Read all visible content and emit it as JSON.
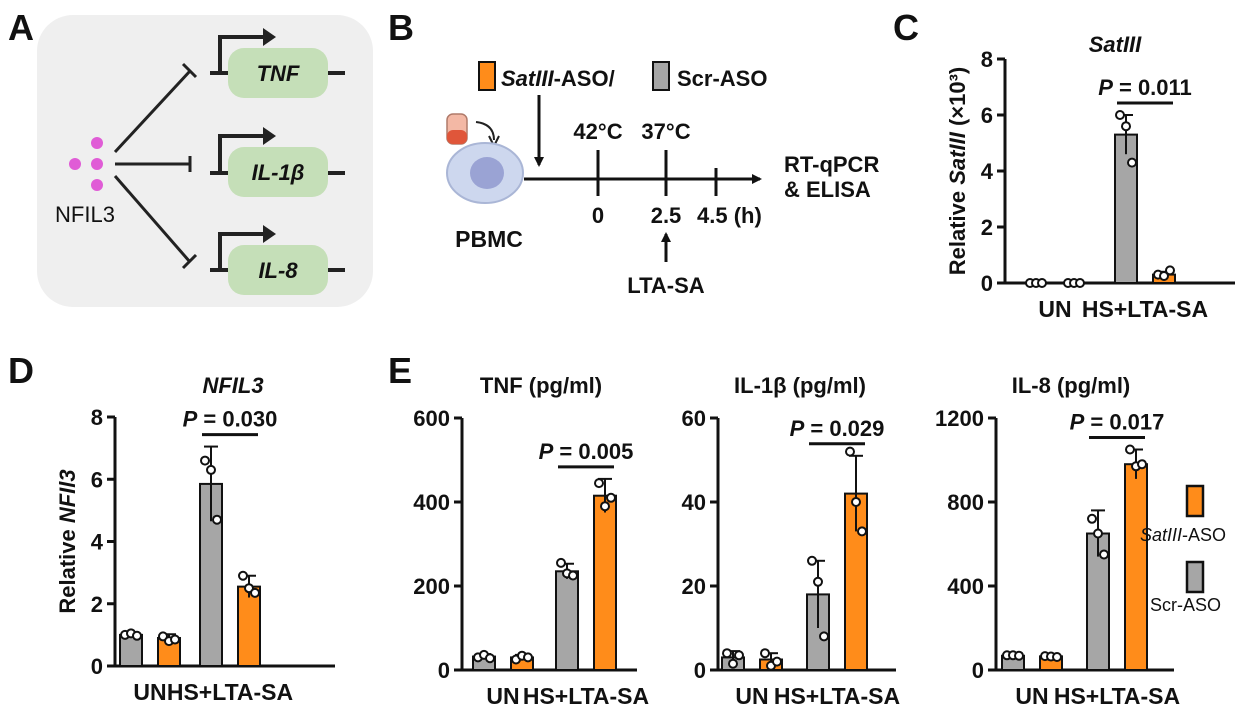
{
  "colors": {
    "gray": "#a6a6a6",
    "orange": "#ff8c1a",
    "green": "#c5dfb8",
    "pink": "#e05cd6",
    "panel_bg": "#efefef"
  },
  "panel_letters": [
    "A",
    "B",
    "C",
    "D",
    "E"
  ],
  "panelA": {
    "regulator": "NFIL3",
    "genes": [
      "TNF",
      "IL-1β",
      "IL-8"
    ]
  },
  "panelB": {
    "treatment_a": "SatIII",
    "treatment_a_suffix": "-ASO/",
    "treatment_b": "Scr-ASO",
    "cells": "PBMC",
    "temp1": "42°C",
    "temp2": "37°C",
    "times": [
      "0",
      "2.5",
      "4.5 (h)"
    ],
    "stimulus": "LTA-SA",
    "readout_line1": "RT-qPCR",
    "readout_line2": "& ELISA"
  },
  "legend": {
    "orange_label_italic": "SatIII",
    "orange_label_suffix": "-ASO",
    "gray_label": "Scr-ASO"
  },
  "chart_data": [
    {
      "id": "C",
      "type": "bar",
      "title": "SatIII",
      "title_italic": true,
      "ylabel_prefix": "Relative ",
      "ylabel_italic": "SatIII",
      "ylabel_suffix": " (×10³)",
      "ylim": [
        0,
        8
      ],
      "yticks": [
        "0",
        "2",
        "4",
        "6",
        "8"
      ],
      "groups": [
        "UN",
        "HS+LTA-SA"
      ],
      "pvalue": "P = 0.011",
      "series": [
        {
          "color": "gray",
          "values": [
            0.0,
            5.3
          ],
          "err": [
            0.0,
            0.7
          ],
          "points": [
            [
              0.0,
              0.0,
              0.0
            ],
            [
              6.0,
              5.6,
              4.3
            ]
          ]
        },
        {
          "color": "orange",
          "values": [
            0.0,
            0.3
          ],
          "err": [
            0.0,
            0.1
          ],
          "points": [
            [
              0.0,
              0.0,
              0.0
            ],
            [
              0.3,
              0.25,
              0.45
            ]
          ]
        }
      ]
    },
    {
      "id": "D",
      "type": "bar",
      "title": "NFIL3",
      "title_italic": true,
      "ylabel_prefix": "Relative ",
      "ylabel_italic": "NFIl3",
      "ylabel_suffix": "",
      "ylim": [
        0,
        8
      ],
      "yticks": [
        "0",
        "2",
        "4",
        "6",
        "8"
      ],
      "groups": [
        "UN",
        "HS+LTA-SA"
      ],
      "pvalue": "P = 0.030",
      "series": [
        {
          "color": "gray",
          "values": [
            1.0,
            5.85
          ],
          "err": [
            0.05,
            1.2
          ],
          "points": [
            [
              1.0,
              1.05,
              0.97
            ],
            [
              6.6,
              6.3,
              4.7
            ]
          ]
        },
        {
          "color": "orange",
          "values": [
            0.9,
            2.55
          ],
          "err": [
            0.12,
            0.35
          ],
          "points": [
            [
              0.95,
              0.8,
              0.85
            ],
            [
              2.9,
              2.5,
              2.35
            ]
          ]
        }
      ]
    },
    {
      "id": "E1",
      "type": "bar",
      "title": "TNF (pg/ml)",
      "title_italic": false,
      "ylim": [
        0,
        600
      ],
      "yticks": [
        "0",
        "200",
        "400",
        "600"
      ],
      "groups": [
        "UN",
        "HS+LTA-SA"
      ],
      "pvalue": "P = 0.005",
      "series": [
        {
          "color": "gray",
          "values": [
            32,
            235
          ],
          "err": [
            6,
            18
          ],
          "points": [
            [
              30,
              36,
              28
            ],
            [
              255,
              230,
              225
            ]
          ]
        },
        {
          "color": "orange",
          "values": [
            30,
            415
          ],
          "err": [
            6,
            40
          ],
          "points": [
            [
              25,
              34,
              30
            ],
            [
              445,
              390,
              410
            ]
          ]
        }
      ]
    },
    {
      "id": "E2",
      "type": "bar",
      "title": "IL-1β (pg/ml)",
      "title_italic": false,
      "ylim": [
        0,
        60
      ],
      "yticks": [
        "0",
        "20",
        "40",
        "60"
      ],
      "groups": [
        "UN",
        "HS+LTA-SA"
      ],
      "pvalue": "P = 0.029",
      "series": [
        {
          "color": "gray",
          "values": [
            3,
            18
          ],
          "err": [
            1.5,
            8
          ],
          "points": [
            [
              4,
              1.5,
              3.5
            ],
            [
              26,
              21,
              8
            ]
          ]
        },
        {
          "color": "orange",
          "values": [
            2.5,
            42
          ],
          "err": [
            1.5,
            9
          ],
          "points": [
            [
              4,
              1,
              2
            ],
            [
              52,
              40,
              33
            ]
          ]
        }
      ]
    },
    {
      "id": "E3",
      "type": "bar",
      "title": "IL-8 (pg/ml)",
      "title_italic": false,
      "ylim": [
        0,
        1200
      ],
      "yticks": [
        "0",
        "400",
        "800",
        "1200"
      ],
      "groups": [
        "UN",
        "HS+LTA-SA"
      ],
      "pvalue": "P = 0.017",
      "series": [
        {
          "color": "gray",
          "values": [
            68,
            650
          ],
          "err": [
            5,
            110
          ],
          "points": [
            [
              70,
              70,
              68
            ],
            [
              720,
              650,
              550
            ]
          ]
        },
        {
          "color": "orange",
          "values": [
            65,
            980
          ],
          "err": [
            5,
            70
          ],
          "points": [
            [
              66,
              64,
              62
            ],
            [
              1050,
              970,
              980
            ]
          ]
        }
      ]
    }
  ]
}
